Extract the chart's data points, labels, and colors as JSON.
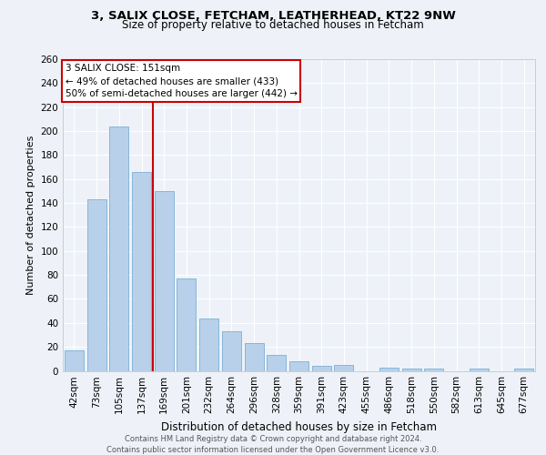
{
  "title1": "3, SALIX CLOSE, FETCHAM, LEATHERHEAD, KT22 9NW",
  "title2": "Size of property relative to detached houses in Fetcham",
  "xlabel": "Distribution of detached houses by size in Fetcham",
  "ylabel": "Number of detached properties",
  "categories": [
    "42sqm",
    "73sqm",
    "105sqm",
    "137sqm",
    "169sqm",
    "201sqm",
    "232sqm",
    "264sqm",
    "296sqm",
    "328sqm",
    "359sqm",
    "391sqm",
    "423sqm",
    "455sqm",
    "486sqm",
    "518sqm",
    "550sqm",
    "582sqm",
    "613sqm",
    "645sqm",
    "677sqm"
  ],
  "values": [
    17,
    143,
    204,
    166,
    150,
    77,
    44,
    33,
    23,
    13,
    8,
    4,
    5,
    0,
    3,
    2,
    2,
    0,
    2,
    0,
    2
  ],
  "bar_color": "#b8d0ea",
  "bar_edge_color": "#7aafd4",
  "vline_x": 3.5,
  "vline_color": "#cc0000",
  "annotation_title": "3 SALIX CLOSE: 151sqm",
  "annotation_line1": "← 49% of detached houses are smaller (433)",
  "annotation_line2": "50% of semi-detached houses are larger (442) →",
  "annotation_box_color": "#cc0000",
  "ylim": [
    0,
    260
  ],
  "yticks": [
    0,
    20,
    40,
    60,
    80,
    100,
    120,
    140,
    160,
    180,
    200,
    220,
    240,
    260
  ],
  "footer": "Contains HM Land Registry data © Crown copyright and database right 2024.\nContains public sector information licensed under the Open Government Licence v3.0.",
  "bg_color": "#eef2f8",
  "grid_color": "#ffffff",
  "title1_fontsize": 9.5,
  "title2_fontsize": 8.5,
  "ylabel_fontsize": 8,
  "xlabel_fontsize": 8.5,
  "footer_fontsize": 6.0,
  "tick_fontsize": 7.5,
  "ann_fontsize": 7.5
}
